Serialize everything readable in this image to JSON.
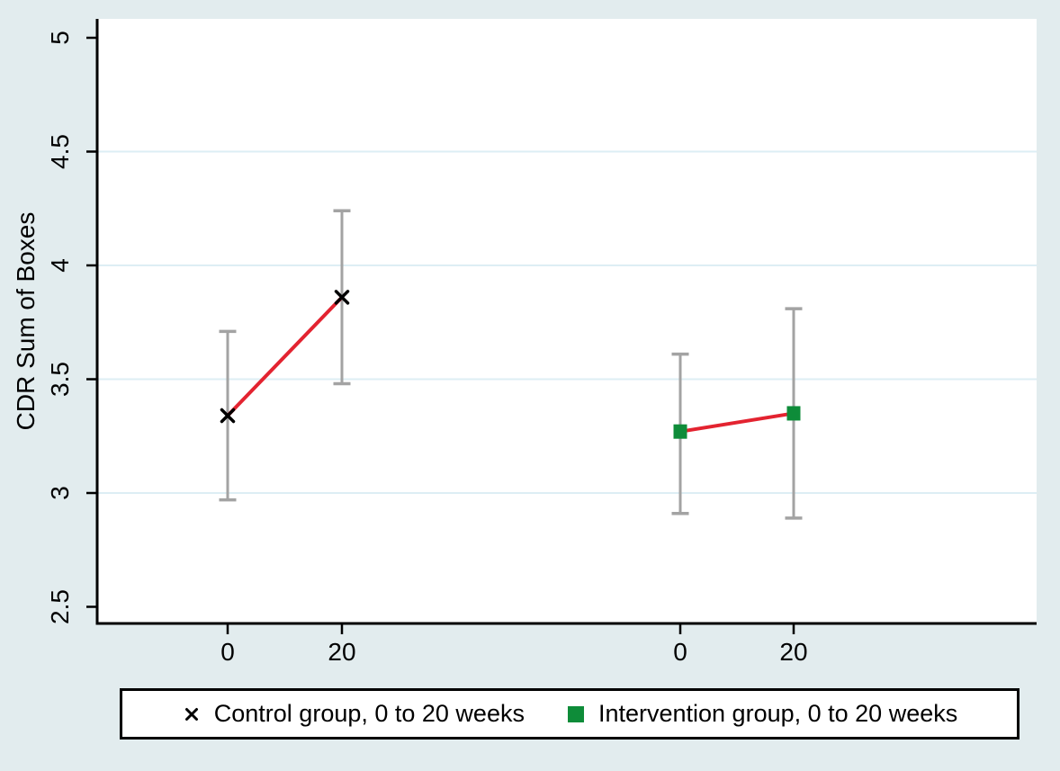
{
  "chart_data": {
    "type": "line",
    "title": "",
    "xlabel": "",
    "ylabel": "CDR Sum of Boxes",
    "ylim": [
      2.5,
      5
    ],
    "y_ticks": [
      2.5,
      3,
      3.5,
      4,
      4.5,
      5
    ],
    "grid_ticks": [
      3,
      3.5,
      4,
      4.5
    ],
    "grid_on": true,
    "x_tick_labels": [
      "0",
      "20",
      "0",
      "20"
    ],
    "legend_position": "bottom",
    "series": [
      {
        "name": "Control group, 0 to 20 weeks",
        "marker": "x",
        "marker_color": "#000000",
        "cluster": 0,
        "points": [
          {
            "week": 0,
            "mean": 3.34,
            "ci_low": 2.97,
            "ci_high": 3.71
          },
          {
            "week": 20,
            "mean": 3.86,
            "ci_low": 3.48,
            "ci_high": 4.24
          }
        ]
      },
      {
        "name": "Intervention group, 0 to 20 weeks",
        "marker": "square",
        "marker_color": "#0e8c39",
        "cluster": 1,
        "points": [
          {
            "week": 0,
            "mean": 3.27,
            "ci_low": 2.91,
            "ci_high": 3.61
          },
          {
            "week": 20,
            "mean": 3.35,
            "ci_low": 2.89,
            "ci_high": 3.81
          }
        ]
      }
    ],
    "colors": {
      "connect_line": "#e32330",
      "error_bar": "#a3a3a3",
      "grid_line": "#ddeef4",
      "axis": "#000000",
      "plot_background": "#ffffff",
      "page_background": "#e2ecee"
    }
  }
}
